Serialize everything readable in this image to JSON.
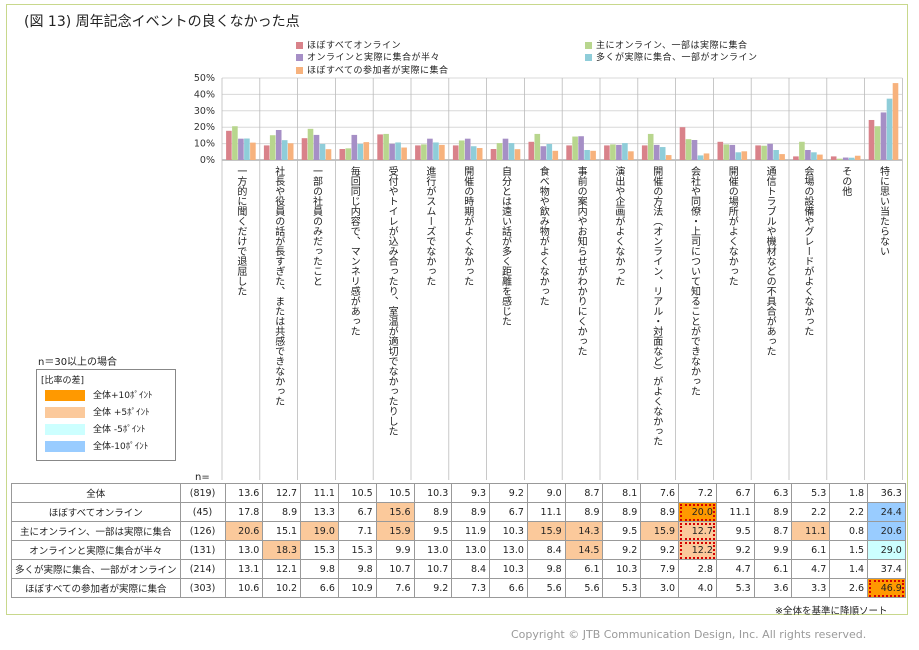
{
  "figure_title": "(図 13) 周年記念イベントの良くなかった点",
  "chart_data": {
    "type": "bar",
    "ylim": [
      0,
      50
    ],
    "y_ticks": [
      "50%",
      "40%",
      "30%",
      "20%",
      "10%",
      "0%"
    ],
    "categories": [
      "一方的に聞くだけで退屈した",
      "社長や役員の話が長すぎた、または共感できなかった",
      "一部の社員のみだったこと",
      "毎回同じ内容で、マンネリ感があった",
      "受付やトイレが込み合ったり、室温が適切でなかったりした",
      "進行がスムーズでなかった",
      "開催の時期がよくなかった",
      "自分とは遠い話が多く距離を感じた",
      "食べ物や飲み物がよくなかった",
      "事前の案内やお知らせがわかりにくかった",
      "演出や企画がよくなかった",
      "開催の方法（オンライン、リアル・対面など）がよくなかった",
      "会社や同僚・上司について知ることができなかった",
      "開催の場所がよくなかった",
      "通信トラブルや機材などの不具合があった",
      "会場の設備やグレードがよくなかった",
      "その他",
      "特に思い当たらない"
    ],
    "series": [
      {
        "name": "ほぼすべてオンライン",
        "color": "#d9828a",
        "values": [
          17.8,
          8.9,
          13.3,
          6.7,
          15.6,
          8.9,
          8.9,
          6.7,
          11.1,
          8.9,
          8.9,
          8.9,
          20.0,
          11.1,
          8.9,
          2.2,
          2.2,
          24.4
        ]
      },
      {
        "name": "主にオンライン、一部は実際に集合",
        "color": "#b8d68e",
        "values": [
          20.6,
          15.1,
          19.0,
          7.1,
          15.9,
          9.5,
          11.9,
          10.3,
          15.9,
          14.3,
          9.5,
          15.9,
          12.7,
          9.5,
          8.7,
          11.1,
          0.8,
          20.6
        ]
      },
      {
        "name": "オンラインと実際に集合が半々",
        "color": "#a68fc6",
        "values": [
          13.0,
          18.3,
          15.3,
          15.3,
          9.9,
          13.0,
          13.0,
          13.0,
          8.4,
          14.5,
          9.2,
          9.2,
          12.2,
          9.2,
          9.9,
          6.1,
          1.5,
          29.0
        ]
      },
      {
        "name": "多くが実際に集合、一部がオンライン",
        "color": "#8fcdd9",
        "values": [
          13.1,
          12.1,
          9.8,
          9.8,
          10.7,
          10.7,
          8.4,
          10.3,
          9.8,
          6.1,
          10.3,
          7.9,
          2.8,
          4.7,
          6.1,
          4.7,
          1.4,
          37.4
        ]
      },
      {
        "name": "ほぼすべての参加者が実際に集合",
        "color": "#f7b27d",
        "values": [
          10.6,
          10.2,
          6.6,
          10.9,
          7.6,
          9.2,
          7.3,
          6.6,
          5.6,
          5.6,
          5.3,
          3.0,
          4.0,
          5.3,
          3.6,
          3.3,
          2.6,
          46.9
        ]
      }
    ]
  },
  "n_note": "n＝30以上の場合",
  "diff_legend": {
    "title": "[比率の差]",
    "items": [
      {
        "label": "全体+10ﾎﾟｲﾝﾄ",
        "color": "#ff9900"
      },
      {
        "label": "全体 +5ﾎﾟｲﾝﾄ",
        "color": "#fbc99b"
      },
      {
        "label": "全体 -5ﾎﾟｲﾝﾄ",
        "color": "#ccffff"
      },
      {
        "label": "全体-10ﾎﾟｲﾝﾄ",
        "color": "#99ccff"
      }
    ]
  },
  "n_label": "n=",
  "table": {
    "rows": [
      {
        "label": "全体",
        "n": "(819)",
        "values": [
          "13.6",
          "12.7",
          "11.1",
          "10.5",
          "10.5",
          "10.3",
          "9.3",
          "9.2",
          "9.0",
          "8.7",
          "8.1",
          "7.6",
          "7.2",
          "6.7",
          "6.3",
          "5.3",
          "1.8",
          "36.3"
        ],
        "fills": [
          "",
          "",
          "",
          "",
          "",
          "",
          "",
          "",
          "",
          "",
          "",
          "",
          "",
          "",
          "",
          "",
          "",
          ""
        ]
      },
      {
        "label": "ほぼすべてオンライン",
        "n": "(45)",
        "values": [
          "17.8",
          "8.9",
          "13.3",
          "6.7",
          "15.6",
          "8.9",
          "8.9",
          "6.7",
          "11.1",
          "8.9",
          "8.9",
          "8.9",
          "20.0",
          "11.1",
          "8.9",
          "2.2",
          "2.2",
          "24.4"
        ],
        "fills": [
          "",
          "",
          "",
          "",
          "#fbc99b",
          "",
          "",
          "",
          "",
          "",
          "",
          "",
          "#ff9900",
          "",
          "",
          "",
          "",
          "#99ccff"
        ]
      },
      {
        "label": "主にオンライン、一部は実際に集合",
        "n": "(126)",
        "values": [
          "20.6",
          "15.1",
          "19.0",
          "7.1",
          "15.9",
          "9.5",
          "11.9",
          "10.3",
          "15.9",
          "14.3",
          "9.5",
          "15.9",
          "12.7",
          "9.5",
          "8.7",
          "11.1",
          "0.8",
          "20.6"
        ],
        "fills": [
          "#fbc99b",
          "",
          "#fbc99b",
          "",
          "#fbc99b",
          "",
          "",
          "",
          "#fbc99b",
          "#fbc99b",
          "",
          "#fbc99b",
          "#fbc99b",
          "",
          "",
          "#fbc99b",
          "",
          "#99ccff"
        ]
      },
      {
        "label": "オンラインと実際に集合が半々",
        "n": "(131)",
        "values": [
          "13.0",
          "18.3",
          "15.3",
          "15.3",
          "9.9",
          "13.0",
          "13.0",
          "13.0",
          "8.4",
          "14.5",
          "9.2",
          "9.2",
          "12.2",
          "9.2",
          "9.9",
          "6.1",
          "1.5",
          "29.0"
        ],
        "fills": [
          "",
          "#fbc99b",
          "",
          "",
          "",
          "",
          "",
          "",
          "",
          "#fbc99b",
          "",
          "",
          "#fbc99b",
          "",
          "",
          "",
          "",
          "#ccffff"
        ]
      },
      {
        "label": "多くが実際に集合、一部がオンライン",
        "n": "(214)",
        "values": [
          "13.1",
          "12.1",
          "9.8",
          "9.8",
          "10.7",
          "10.7",
          "8.4",
          "10.3",
          "9.8",
          "6.1",
          "10.3",
          "7.9",
          "2.8",
          "4.7",
          "6.1",
          "4.7",
          "1.4",
          "37.4"
        ],
        "fills": [
          "",
          "",
          "",
          "",
          "",
          "",
          "",
          "",
          "",
          "",
          "",
          "",
          "",
          "",
          "",
          "",
          "",
          ""
        ]
      },
      {
        "label": "ほぼすべての参加者が実際に集合",
        "n": "(303)",
        "values": [
          "10.6",
          "10.2",
          "6.6",
          "10.9",
          "7.6",
          "9.2",
          "7.3",
          "6.6",
          "5.6",
          "5.6",
          "5.3",
          "3.0",
          "4.0",
          "5.3",
          "3.6",
          "3.3",
          "2.6",
          "46.9"
        ],
        "fills": [
          "",
          "",
          "",
          "",
          "",
          "",
          "",
          "",
          "",
          "",
          "",
          "",
          "",
          "",
          "",
          "",
          "",
          "#ff9900"
        ]
      }
    ],
    "highlighted_cells": [
      [
        1,
        12
      ],
      [
        2,
        12
      ],
      [
        3,
        12
      ],
      [
        5,
        17
      ]
    ]
  },
  "sort_note": "※全体を基準に降順ソート",
  "copyright": "Copyright © JTB Communication Design, Inc. All rights reserved."
}
